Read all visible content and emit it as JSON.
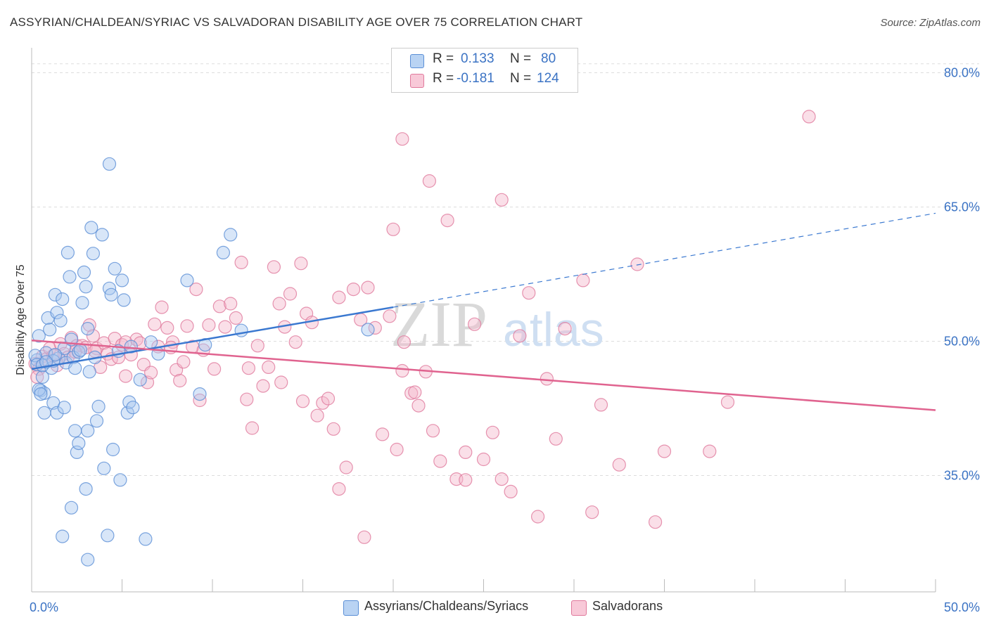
{
  "title": "ASSYRIAN/CHALDEAN/SYRIAC VS SALVADORAN DISABILITY AGE OVER 75 CORRELATION CHART",
  "source": "Source: ZipAtlas.com",
  "legend": {
    "rows": [
      {
        "r_label": "R =",
        "r_value": "0.133",
        "n_label": "N =",
        "n_value": "80",
        "color": "#a9c8f0"
      },
      {
        "r_label": "R =",
        "r_value": "-0.181",
        "n_label": "N =",
        "n_value": "124",
        "color": "#f5b8cc"
      }
    ]
  },
  "watermark": {
    "zip": "ZIP",
    "atlas": "atlas"
  },
  "chart_data": {
    "type": "scatter",
    "title": "ASSYRIAN/CHALDEAN/SYRIAC VS SALVADORAN DISABILITY AGE OVER 75 CORRELATION CHART",
    "xlabel": "",
    "ylabel": "Disability Age Over 75",
    "xlim": [
      0,
      50
    ],
    "ylim": [
      22,
      82
    ],
    "x_tick_labels": [
      "0.0%",
      "50.0%"
    ],
    "y_tick_labels": [
      "80.0%",
      "65.0%",
      "50.0%",
      "35.0%"
    ],
    "y_ticks": [
      80,
      65,
      50,
      35
    ],
    "grid": true,
    "legend_position": "top-center",
    "series": [
      {
        "name": "Assyrians/Chaldeans/Syriacs",
        "color": "#5b8fd6",
        "fill": "#a9c8f0",
        "trend": {
          "x": [
            0,
            20
          ],
          "y": [
            46.9,
            53.8
          ],
          "extended_to": [
            50,
            64.3
          ]
        },
        "points": [
          [
            0.3,
            47.9
          ],
          [
            0.4,
            50.6
          ],
          [
            0.5,
            44.5
          ],
          [
            0.6,
            46.0
          ],
          [
            0.7,
            44.2
          ],
          [
            0.8,
            48.7
          ],
          [
            0.9,
            52.6
          ],
          [
            1.0,
            51.3
          ],
          [
            1.1,
            47.0
          ],
          [
            1.2,
            43.1
          ],
          [
            1.3,
            55.2
          ],
          [
            1.4,
            53.2
          ],
          [
            1.5,
            48.1
          ],
          [
            1.6,
            52.3
          ],
          [
            1.7,
            54.7
          ],
          [
            1.8,
            49.2
          ],
          [
            1.9,
            47.6
          ],
          [
            2.0,
            59.9
          ],
          [
            2.1,
            57.2
          ],
          [
            2.2,
            50.2
          ],
          [
            2.3,
            48.2
          ],
          [
            2.4,
            47.0
          ],
          [
            2.5,
            37.6
          ],
          [
            2.6,
            48.8
          ],
          [
            2.7,
            49.0
          ],
          [
            2.8,
            54.3
          ],
          [
            2.9,
            57.7
          ],
          [
            3.0,
            56.1
          ],
          [
            3.1,
            51.4
          ],
          [
            3.2,
            46.6
          ],
          [
            3.3,
            62.7
          ],
          [
            3.4,
            59.8
          ],
          [
            3.5,
            48.2
          ],
          [
            3.6,
            41.1
          ],
          [
            3.7,
            42.7
          ],
          [
            3.9,
            61.9
          ],
          [
            4.0,
            35.8
          ],
          [
            4.2,
            28.3
          ],
          [
            4.3,
            55.9
          ],
          [
            4.4,
            55.2
          ],
          [
            4.5,
            37.9
          ],
          [
            4.6,
            58.1
          ],
          [
            4.8,
            48.9
          ],
          [
            4.9,
            34.5
          ],
          [
            5.0,
            56.8
          ],
          [
            5.1,
            54.6
          ],
          [
            5.3,
            42.0
          ],
          [
            5.4,
            43.2
          ],
          [
            5.5,
            49.4
          ],
          [
            5.6,
            42.6
          ],
          [
            6.0,
            45.7
          ],
          [
            6.3,
            27.9
          ],
          [
            6.6,
            49.9
          ],
          [
            7.0,
            48.6
          ],
          [
            8.6,
            56.8
          ],
          [
            9.3,
            44.1
          ],
          [
            9.6,
            49.6
          ],
          [
            10.6,
            59.9
          ],
          [
            11.0,
            61.9
          ],
          [
            11.6,
            51.2
          ],
          [
            18.6,
            51.3
          ],
          [
            0.2,
            48.4
          ],
          [
            0.3,
            47.4
          ],
          [
            0.4,
            44.6
          ],
          [
            0.5,
            44.1
          ],
          [
            0.6,
            47.3
          ],
          [
            0.7,
            42.0
          ],
          [
            1.2,
            47.8
          ],
          [
            1.3,
            48.5
          ],
          [
            1.4,
            42.0
          ],
          [
            1.8,
            42.6
          ],
          [
            2.2,
            31.4
          ],
          [
            2.4,
            40.0
          ],
          [
            2.6,
            38.6
          ],
          [
            3.1,
            40.0
          ],
          [
            3.0,
            33.5
          ],
          [
            1.7,
            28.2
          ],
          [
            3.1,
            25.6
          ],
          [
            4.3,
            69.8
          ],
          [
            0.8,
            47.7
          ]
        ]
      },
      {
        "name": "Salvadorans",
        "color": "#e0799c",
        "fill": "#f5b8cc",
        "trend": {
          "x": [
            0,
            50
          ],
          "y": [
            50.1,
            42.3
          ]
        },
        "points": [
          [
            0.2,
            47.5
          ],
          [
            0.4,
            46.9
          ],
          [
            0.6,
            48.3
          ],
          [
            0.8,
            48.0
          ],
          [
            1.0,
            49.2
          ],
          [
            1.2,
            48.4
          ],
          [
            1.4,
            47.3
          ],
          [
            1.6,
            49.7
          ],
          [
            1.8,
            48.6
          ],
          [
            2.0,
            48.2
          ],
          [
            2.2,
            50.4
          ],
          [
            2.5,
            49.5
          ],
          [
            2.8,
            49.5
          ],
          [
            3.0,
            49.3
          ],
          [
            3.2,
            51.8
          ],
          [
            3.4,
            50.6
          ],
          [
            3.6,
            49.2
          ],
          [
            3.8,
            47.1
          ],
          [
            4.0,
            49.8
          ],
          [
            4.2,
            48.6
          ],
          [
            4.4,
            48.0
          ],
          [
            4.6,
            50.3
          ],
          [
            4.8,
            48.2
          ],
          [
            5.0,
            49.6
          ],
          [
            5.2,
            46.1
          ],
          [
            5.5,
            48.5
          ],
          [
            5.8,
            50.2
          ],
          [
            6.0,
            49.8
          ],
          [
            6.2,
            47.4
          ],
          [
            6.4,
            45.4
          ],
          [
            6.6,
            46.5
          ],
          [
            6.8,
            51.9
          ],
          [
            7.0,
            49.4
          ],
          [
            7.2,
            53.8
          ],
          [
            7.5,
            51.5
          ],
          [
            7.8,
            49.9
          ],
          [
            8.0,
            46.8
          ],
          [
            8.2,
            45.6
          ],
          [
            8.4,
            47.7
          ],
          [
            8.6,
            51.7
          ],
          [
            8.9,
            49.4
          ],
          [
            9.1,
            55.8
          ],
          [
            9.3,
            43.4
          ],
          [
            9.5,
            49.0
          ],
          [
            9.8,
            51.8
          ],
          [
            10.1,
            46.9
          ],
          [
            10.4,
            53.9
          ],
          [
            10.7,
            51.6
          ],
          [
            11.0,
            54.2
          ],
          [
            11.3,
            52.6
          ],
          [
            11.6,
            58.8
          ],
          [
            11.9,
            43.5
          ],
          [
            12.2,
            40.3
          ],
          [
            12.5,
            49.5
          ],
          [
            12.8,
            45.0
          ],
          [
            13.1,
            47.1
          ],
          [
            13.4,
            58.3
          ],
          [
            13.7,
            54.2
          ],
          [
            14.0,
            51.6
          ],
          [
            14.3,
            55.3
          ],
          [
            14.6,
            49.9
          ],
          [
            14.9,
            58.7
          ],
          [
            15.2,
            53.1
          ],
          [
            15.5,
            52.1
          ],
          [
            15.8,
            41.7
          ],
          [
            16.1,
            43.1
          ],
          [
            16.4,
            43.6
          ],
          [
            16.7,
            40.2
          ],
          [
            17.0,
            54.9
          ],
          [
            17.4,
            35.9
          ],
          [
            17.8,
            55.8
          ],
          [
            18.2,
            52.4
          ],
          [
            18.6,
            56.0
          ],
          [
            19.0,
            51.5
          ],
          [
            19.4,
            39.6
          ],
          [
            19.8,
            52.8
          ],
          [
            20.2,
            37.9
          ],
          [
            20.6,
            49.9
          ],
          [
            21.0,
            44.2
          ],
          [
            21.4,
            42.8
          ],
          [
            21.8,
            46.6
          ],
          [
            22.2,
            40.0
          ],
          [
            22.6,
            36.6
          ],
          [
            23.0,
            63.5
          ],
          [
            23.5,
            34.6
          ],
          [
            24.0,
            37.6
          ],
          [
            24.5,
            51.9
          ],
          [
            25.0,
            36.8
          ],
          [
            25.5,
            39.8
          ],
          [
            26.0,
            34.6
          ],
          [
            26.5,
            33.2
          ],
          [
            27.0,
            50.6
          ],
          [
            27.5,
            55.4
          ],
          [
            28.0,
            30.4
          ],
          [
            28.5,
            45.8
          ],
          [
            29.0,
            39.1
          ],
          [
            29.5,
            51.4
          ],
          [
            30.5,
            56.8
          ],
          [
            31.0,
            30.9
          ],
          [
            31.5,
            42.9
          ],
          [
            32.5,
            36.2
          ],
          [
            33.5,
            58.6
          ],
          [
            34.5,
            29.8
          ],
          [
            35.0,
            37.7
          ],
          [
            37.5,
            37.7
          ],
          [
            38.5,
            43.2
          ],
          [
            43.0,
            75.1
          ],
          [
            18.4,
            28.1
          ],
          [
            20.5,
            72.6
          ],
          [
            20.0,
            62.5
          ],
          [
            22.0,
            67.9
          ],
          [
            26.0,
            65.8
          ],
          [
            17.0,
            33.5
          ],
          [
            24.0,
            34.5
          ],
          [
            15.0,
            43.3
          ],
          [
            0.3,
            46.0
          ],
          [
            2.4,
            48.8
          ],
          [
            3.5,
            48.9
          ],
          [
            5.2,
            49.9
          ],
          [
            7.7,
            49.3
          ],
          [
            12.0,
            47.0
          ],
          [
            13.8,
            45.4
          ],
          [
            20.5,
            46.7
          ],
          [
            21.2,
            44.3
          ]
        ]
      }
    ]
  }
}
